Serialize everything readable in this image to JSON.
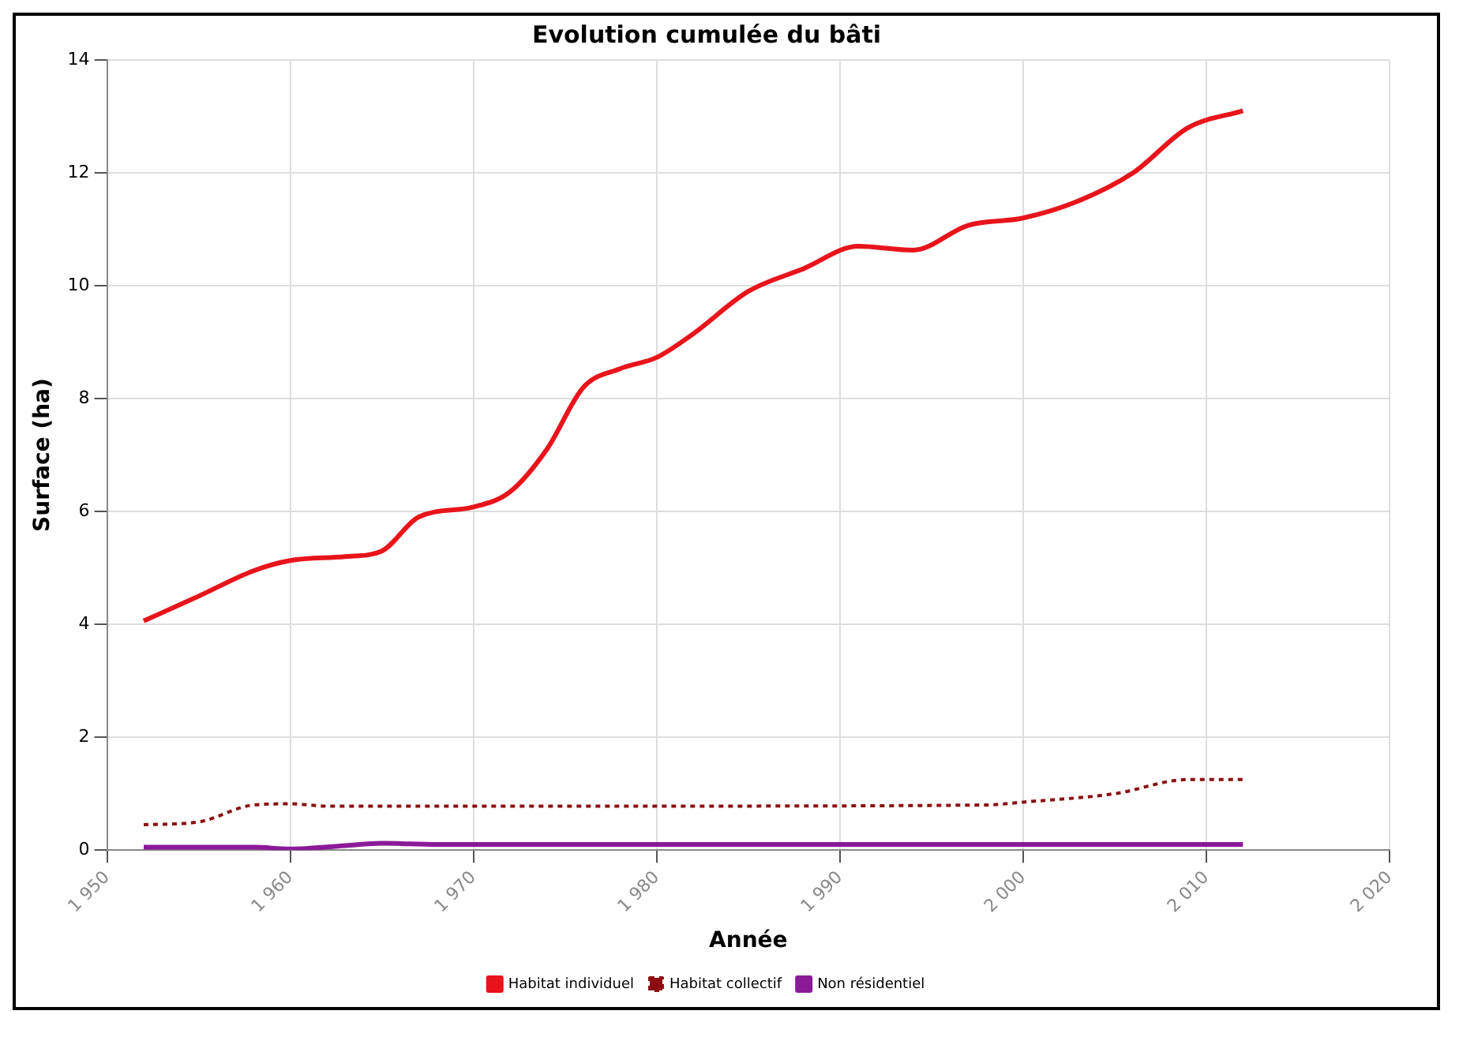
{
  "chart_data": {
    "type": "line",
    "title": "Evolution cumulée du bâti",
    "xlabel": "Année",
    "ylabel": "Surface (ha)",
    "xlim": [
      1950,
      2020
    ],
    "xticks": [
      {
        "value": 1950,
        "label": "1 950"
      },
      {
        "value": 1960,
        "label": "1 960"
      },
      {
        "value": 1970,
        "label": "1 970"
      },
      {
        "value": 1980,
        "label": "1 980"
      },
      {
        "value": 1990,
        "label": "1 990"
      },
      {
        "value": 2000,
        "label": "2 000"
      },
      {
        "value": 2010,
        "label": "2 010"
      },
      {
        "value": 2020,
        "label": "2 020"
      }
    ],
    "ylim": [
      0,
      14
    ],
    "yticks": [
      0,
      2,
      4,
      6,
      8,
      10,
      12,
      14
    ],
    "grid": true,
    "legend": "bottom",
    "marker": "none",
    "series": [
      {
        "name": "Habitat individuel",
        "color": "#e8141c",
        "line_style": "solid",
        "x": [
          1952,
          1955,
          1958,
          1960,
          1963,
          1965,
          1967,
          1970,
          1972,
          1974,
          1976,
          1978,
          1980,
          1982,
          1985,
          1988,
          1991,
          1994,
          1997,
          2000,
          2003,
          2006,
          2009,
          2012
        ],
        "values": [
          4.06,
          4.5,
          4.95,
          5.13,
          5.2,
          5.3,
          5.9,
          6.08,
          6.35,
          7.1,
          8.2,
          8.53,
          8.73,
          9.15,
          9.9,
          10.3,
          10.7,
          10.63,
          11.07,
          11.2,
          11.5,
          12.0,
          12.8,
          13.1
        ]
      },
      {
        "name": "Habitat collectif",
        "color": "#8b0f12",
        "line_style": "dotted",
        "x": [
          1952,
          1955,
          1958,
          1960,
          1962,
          1965,
          1980,
          1998,
          2000,
          2005,
          2009,
          2012
        ],
        "values": [
          0.45,
          0.5,
          0.8,
          0.82,
          0.78,
          0.78,
          0.78,
          0.8,
          0.85,
          1.0,
          1.25,
          1.25
        ]
      },
      {
        "name": "Non résidentiel",
        "color": "#8b1a99",
        "line_style": "solid",
        "x": [
          1952,
          1958,
          1960,
          1963,
          1965,
          1968,
          2012
        ],
        "values": [
          0.05,
          0.05,
          0.02,
          0.08,
          0.12,
          0.1,
          0.1
        ]
      }
    ]
  }
}
